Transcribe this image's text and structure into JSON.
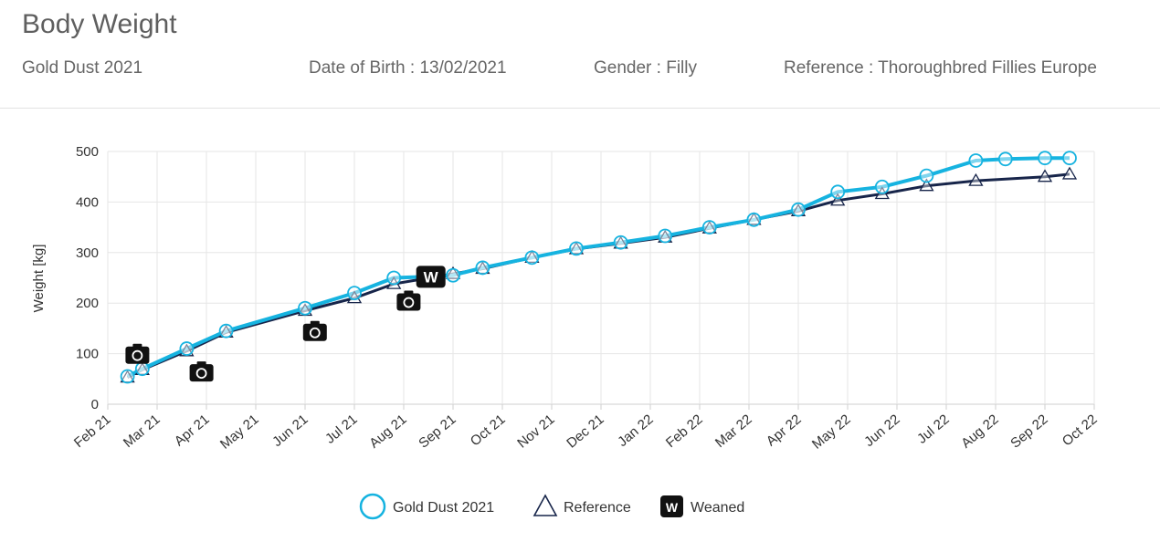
{
  "header": {
    "title": "Body Weight",
    "horse_name": "Gold Dust 2021",
    "dob": "Date of Birth : 13/02/2021",
    "gender": "Gender : Filly",
    "reference": "Reference : Thoroughbred Fillies Europe"
  },
  "colors": {
    "horse": "#16b3e0",
    "reference": "#17254a",
    "marker": "#111111",
    "grid": "#e6e6e6"
  },
  "chart_data": {
    "type": "line",
    "title": "",
    "xlabel": "",
    "ylabel": "Weight [kg]",
    "ylim": [
      0,
      500
    ],
    "yticks": [
      0,
      100,
      200,
      300,
      400,
      500
    ],
    "x_tick_labels": [
      "Feb 21",
      "Mar 21",
      "Apr 21",
      "May 21",
      "Jun 21",
      "Jul 21",
      "Aug 21",
      "Sep 21",
      "Oct 21",
      "Nov 21",
      "Dec 21",
      "Jan 22",
      "Feb 22",
      "Mar 22",
      "Apr 22",
      "May 22",
      "Jun 22",
      "Jul 22",
      "Aug 22",
      "Sep 22",
      "Oct 22"
    ],
    "grid": true,
    "legend_position": "bottom",
    "series": [
      {
        "name": "Gold Dust 2021",
        "marker": "circle",
        "x": [
          0.4,
          0.7,
          1.6,
          2.4,
          4.0,
          5.0,
          5.8,
          6.4,
          7.0,
          7.6,
          8.6,
          9.5,
          10.4,
          11.3,
          12.2,
          13.1,
          14.0,
          14.8,
          15.7,
          16.6,
          17.6,
          18.2,
          19.0,
          19.5
        ],
        "y": [
          55,
          70,
          110,
          145,
          190,
          220,
          250,
          252,
          255,
          270,
          290,
          308,
          320,
          333,
          350,
          365,
          385,
          420,
          430,
          452,
          482,
          485,
          487,
          487
        ]
      },
      {
        "name": "Reference",
        "marker": "triangle",
        "x": [
          0.4,
          0.7,
          1.6,
          2.4,
          4.0,
          5.0,
          5.8,
          7.0,
          7.6,
          8.6,
          9.5,
          10.4,
          11.3,
          12.2,
          13.1,
          14.0,
          14.8,
          15.7,
          16.6,
          17.6,
          19.0,
          19.5
        ],
        "y": [
          53,
          68,
          105,
          142,
          185,
          210,
          238,
          258,
          268,
          290,
          307,
          318,
          330,
          348,
          365,
          382,
          403,
          416,
          432,
          442,
          450,
          455
        ]
      }
    ],
    "photo_markers": [
      {
        "x": 0.6,
        "y": 98
      },
      {
        "x": 1.9,
        "y": 63
      },
      {
        "x": 4.2,
        "y": 143
      },
      {
        "x": 6.1,
        "y": 203
      }
    ],
    "events": [
      {
        "name": "Weaned",
        "label": "W",
        "x": 6.55,
        "y": 252
      }
    ]
  },
  "legend": {
    "horse": "Gold Dust 2021",
    "reference": "Reference",
    "weaned": "Weaned",
    "weaned_badge": "W"
  }
}
